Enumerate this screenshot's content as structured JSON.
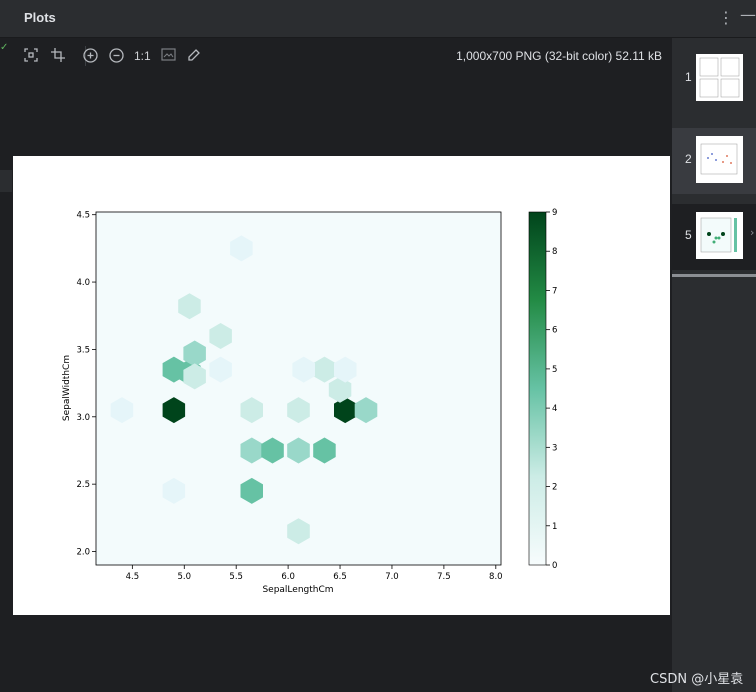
{
  "panel": {
    "title": "Plots"
  },
  "toolbar": {
    "zoom_actual_label": "1:1",
    "image_info": "1,000x700 PNG (32-bit color) 52.11 kB"
  },
  "thumbnails": [
    {
      "label": "1"
    },
    {
      "label": "2"
    },
    {
      "label": "5"
    }
  ],
  "watermark": "CSDN @小星袁",
  "colors": {
    "cmap_low": "#f7fcfd",
    "cmap_high": "#00441b"
  },
  "chart_data": {
    "type": "heatmap",
    "subtype": "hexbin",
    "xlabel": "SepalLengthCm",
    "ylabel": "SepalWidthCm",
    "xlim": [
      4.15,
      8.05
    ],
    "ylim": [
      1.9,
      4.52
    ],
    "xticks": [
      4.5,
      5.0,
      5.5,
      6.0,
      6.5,
      7.0,
      7.5,
      8.0
    ],
    "yticks": [
      2.0,
      2.5,
      3.0,
      3.5,
      4.0,
      4.5
    ],
    "colorbar": {
      "min": 0,
      "max": 9,
      "ticks": [
        0,
        1,
        2,
        3,
        4,
        5,
        6,
        7,
        8,
        9
      ]
    },
    "cells": [
      {
        "x": 5.05,
        "y": 3.82,
        "count": 2
      },
      {
        "x": 5.05,
        "y": 3.33,
        "count": 4
      },
      {
        "x": 5.1,
        "y": 3.47,
        "count": 3
      },
      {
        "x": 4.9,
        "y": 3.05,
        "count": 9
      },
      {
        "x": 4.9,
        "y": 3.35,
        "count": 4
      },
      {
        "x": 5.1,
        "y": 3.3,
        "count": 2
      },
      {
        "x": 5.35,
        "y": 3.6,
        "count": 2
      },
      {
        "x": 5.35,
        "y": 3.35,
        "count": 1
      },
      {
        "x": 6.55,
        "y": 3.05,
        "count": 9
      },
      {
        "x": 6.75,
        "y": 3.05,
        "count": 3
      },
      {
        "x": 5.65,
        "y": 2.75,
        "count": 3
      },
      {
        "x": 5.85,
        "y": 2.75,
        "count": 4
      },
      {
        "x": 6.1,
        "y": 2.75,
        "count": 3
      },
      {
        "x": 6.35,
        "y": 2.75,
        "count": 4
      },
      {
        "x": 5.65,
        "y": 2.45,
        "count": 4
      },
      {
        "x": 6.1,
        "y": 3.05,
        "count": 2
      },
      {
        "x": 5.65,
        "y": 3.05,
        "count": 2
      },
      {
        "x": 6.1,
        "y": 2.15,
        "count": 2
      },
      {
        "x": 6.35,
        "y": 3.35,
        "count": 2
      },
      {
        "x": 6.15,
        "y": 3.35,
        "count": 1
      },
      {
        "x": 6.5,
        "y": 3.2,
        "count": 2
      },
      {
        "x": 6.55,
        "y": 3.35,
        "count": 1
      },
      {
        "x": 4.4,
        "y": 3.05,
        "count": 1
      },
      {
        "x": 4.9,
        "y": 2.45,
        "count": 1
      },
      {
        "x": 5.55,
        "y": 4.25,
        "count": 1
      }
    ]
  }
}
